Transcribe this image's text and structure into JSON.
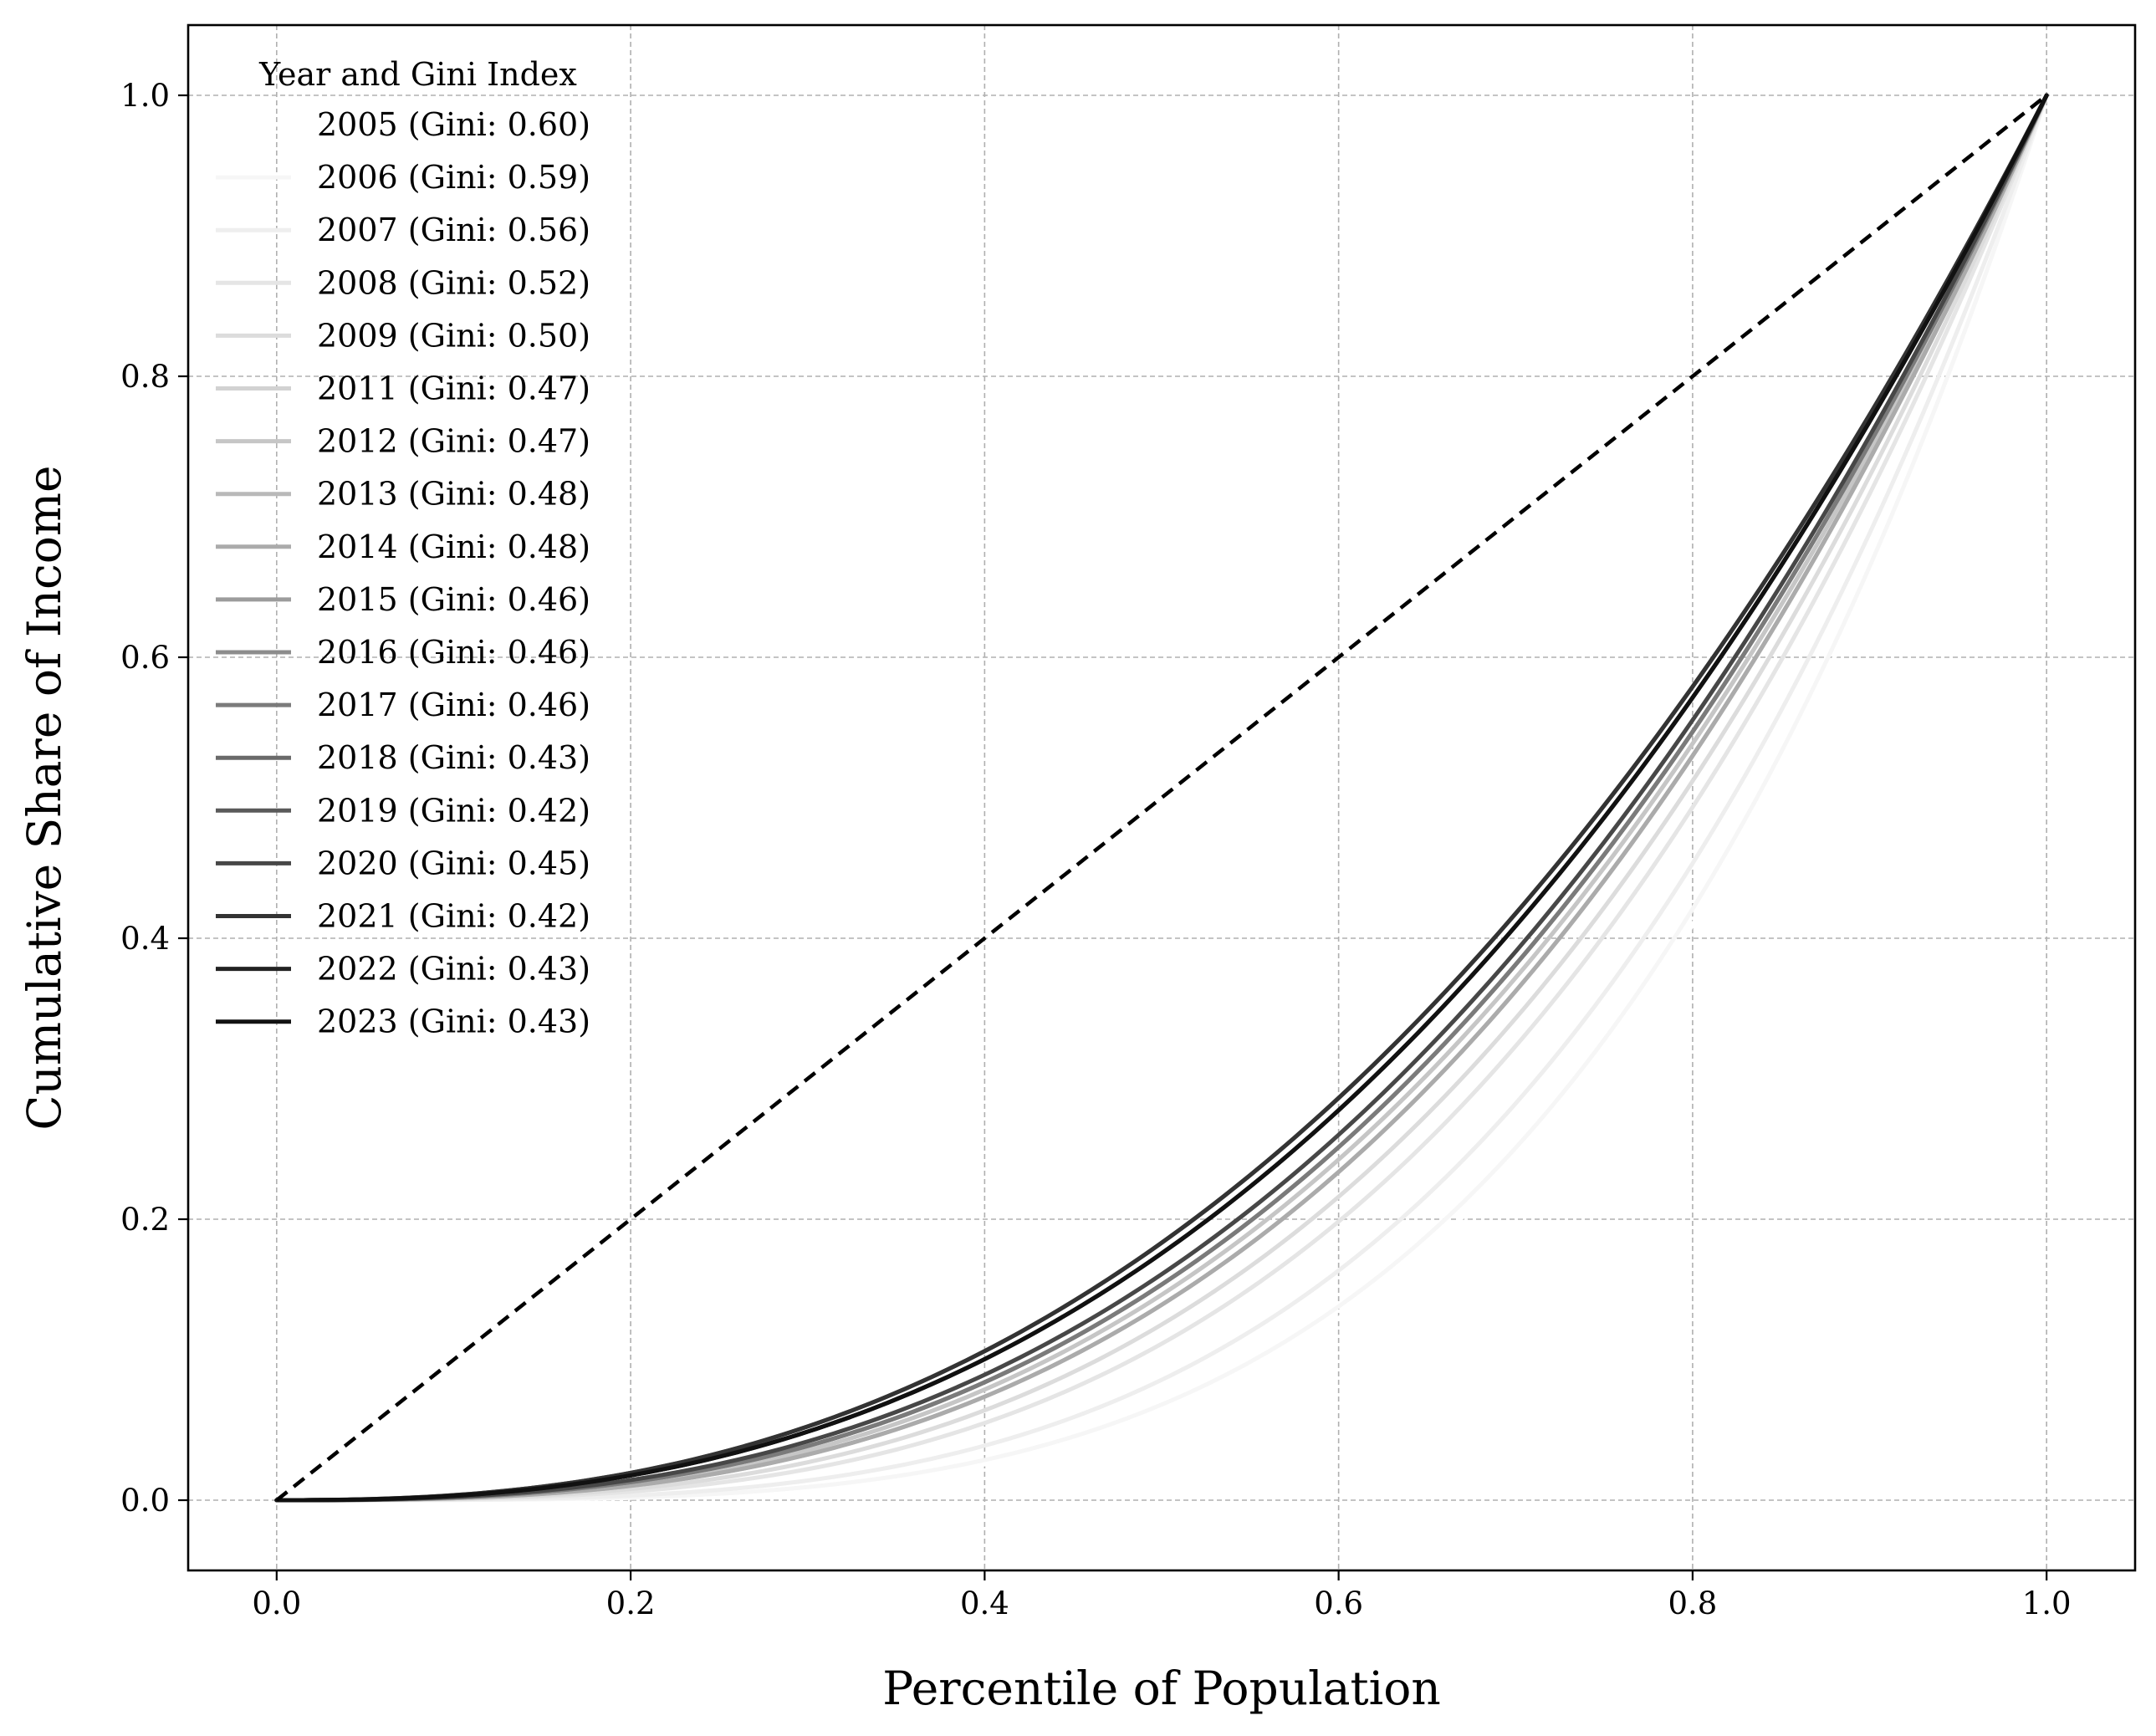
{
  "chart_data": {
    "type": "line",
    "title": "",
    "xlabel": "Percentile of Population",
    "ylabel": "Cumulative Share of Income",
    "xlim": [
      -0.05,
      1.05
    ],
    "ylim": [
      -0.05,
      1.05
    ],
    "xticks": [
      "0.0",
      "0.2",
      "0.4",
      "0.6",
      "0.8",
      "1.0"
    ],
    "yticks": [
      "0.0",
      "0.2",
      "0.4",
      "0.6",
      "0.8",
      "1.0"
    ],
    "grid": true,
    "legend_title": "Year and Gini Index",
    "legend_position": "upper-left",
    "equality_line": {
      "x": [
        0,
        1
      ],
      "y": [
        0,
        1
      ],
      "color": "#000000",
      "style": "dashed"
    },
    "series": [
      {
        "name": "2005 (Gini: 0.60)",
        "gini": 0.6,
        "color": "#ffffff"
      },
      {
        "name": "2006 (Gini: 0.59)",
        "gini": 0.59,
        "color": "#f6f6f6"
      },
      {
        "name": "2007 (Gini: 0.56)",
        "gini": 0.56,
        "color": "#eeeeee"
      },
      {
        "name": "2008 (Gini: 0.52)",
        "gini": 0.52,
        "color": "#e5e5e5"
      },
      {
        "name": "2009 (Gini: 0.50)",
        "gini": 0.5,
        "color": "#dcdcdc"
      },
      {
        "name": "2011 (Gini: 0.47)",
        "gini": 0.47,
        "color": "#d2d2d2"
      },
      {
        "name": "2012 (Gini: 0.47)",
        "gini": 0.47,
        "color": "#c6c6c6"
      },
      {
        "name": "2013 (Gini: 0.48)",
        "gini": 0.48,
        "color": "#b9b9b9"
      },
      {
        "name": "2014 (Gini: 0.48)",
        "gini": 0.48,
        "color": "#ababab"
      },
      {
        "name": "2015 (Gini: 0.46)",
        "gini": 0.46,
        "color": "#9c9c9c"
      },
      {
        "name": "2016 (Gini: 0.46)",
        "gini": 0.46,
        "color": "#8c8c8c"
      },
      {
        "name": "2017 (Gini: 0.46)",
        "gini": 0.46,
        "color": "#7b7b7b"
      },
      {
        "name": "2018 (Gini: 0.43)",
        "gini": 0.43,
        "color": "#6a6a6a"
      },
      {
        "name": "2019 (Gini: 0.42)",
        "gini": 0.42,
        "color": "#5a5a5a"
      },
      {
        "name": "2020 (Gini: 0.45)",
        "gini": 0.45,
        "color": "#474747"
      },
      {
        "name": "2021 (Gini: 0.42)",
        "gini": 0.42,
        "color": "#333333"
      },
      {
        "name": "2022 (Gini: 0.43)",
        "gini": 0.43,
        "color": "#222222"
      },
      {
        "name": "2023 (Gini: 0.43)",
        "gini": 0.43,
        "color": "#111111"
      }
    ]
  }
}
